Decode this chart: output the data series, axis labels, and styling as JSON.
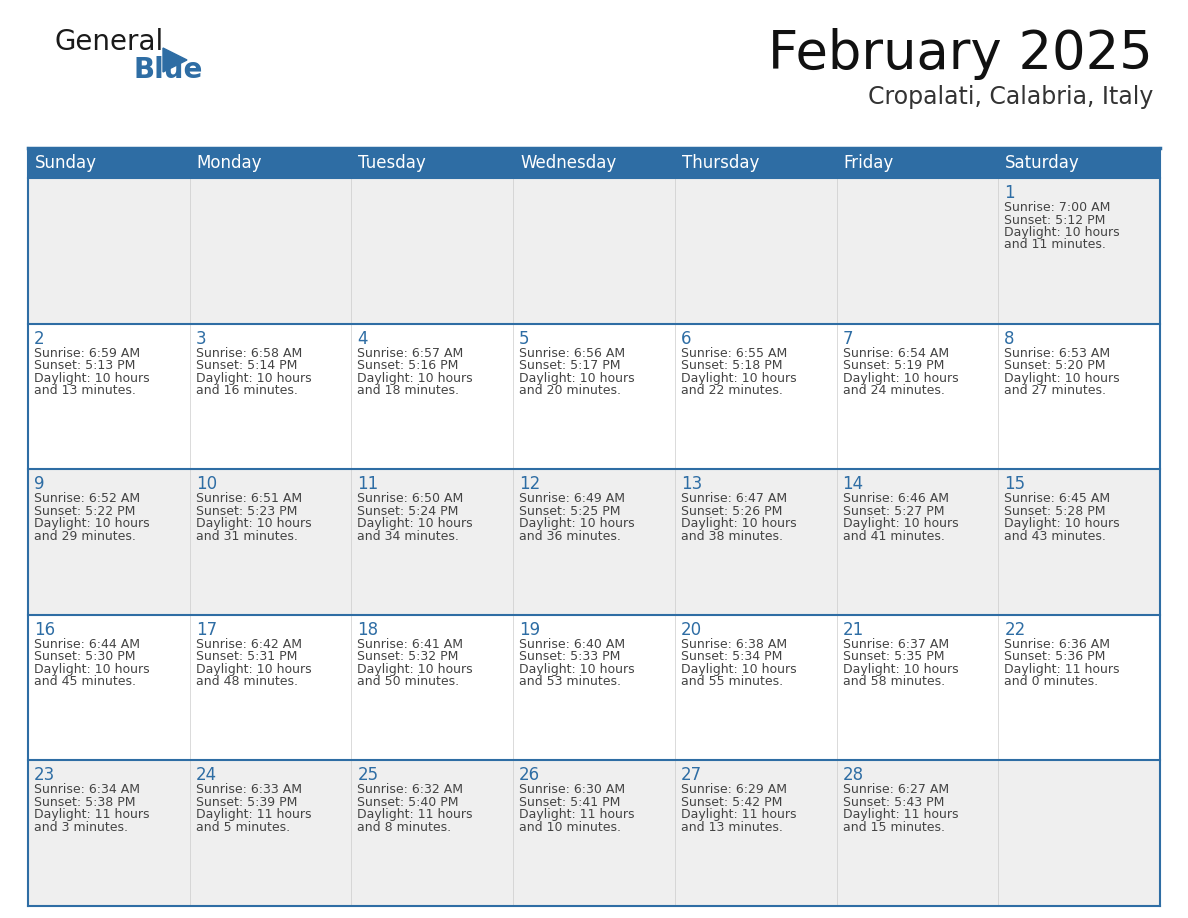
{
  "title": "February 2025",
  "subtitle": "Cropalati, Calabria, Italy",
  "header_bg": "#2E6DA4",
  "header_text_color": "#FFFFFF",
  "cell_bg_light": "#EFEFEF",
  "cell_bg_white": "#FFFFFF",
  "day_number_color": "#2E6DA4",
  "detail_text_color": "#444444",
  "border_color": "#2E6DA4",
  "grid_color": "#CCCCCC",
  "days_of_week": [
    "Sunday",
    "Monday",
    "Tuesday",
    "Wednesday",
    "Thursday",
    "Friday",
    "Saturday"
  ],
  "weeks": [
    [
      {
        "day": null,
        "sunrise": null,
        "sunset": null,
        "daylight_line1": null,
        "daylight_line2": null
      },
      {
        "day": null,
        "sunrise": null,
        "sunset": null,
        "daylight_line1": null,
        "daylight_line2": null
      },
      {
        "day": null,
        "sunrise": null,
        "sunset": null,
        "daylight_line1": null,
        "daylight_line2": null
      },
      {
        "day": null,
        "sunrise": null,
        "sunset": null,
        "daylight_line1": null,
        "daylight_line2": null
      },
      {
        "day": null,
        "sunrise": null,
        "sunset": null,
        "daylight_line1": null,
        "daylight_line2": null
      },
      {
        "day": null,
        "sunrise": null,
        "sunset": null,
        "daylight_line1": null,
        "daylight_line2": null
      },
      {
        "day": 1,
        "sunrise": "7:00 AM",
        "sunset": "5:12 PM",
        "daylight_line1": "Daylight: 10 hours",
        "daylight_line2": "and 11 minutes."
      }
    ],
    [
      {
        "day": 2,
        "sunrise": "6:59 AM",
        "sunset": "5:13 PM",
        "daylight_line1": "Daylight: 10 hours",
        "daylight_line2": "and 13 minutes."
      },
      {
        "day": 3,
        "sunrise": "6:58 AM",
        "sunset": "5:14 PM",
        "daylight_line1": "Daylight: 10 hours",
        "daylight_line2": "and 16 minutes."
      },
      {
        "day": 4,
        "sunrise": "6:57 AM",
        "sunset": "5:16 PM",
        "daylight_line1": "Daylight: 10 hours",
        "daylight_line2": "and 18 minutes."
      },
      {
        "day": 5,
        "sunrise": "6:56 AM",
        "sunset": "5:17 PM",
        "daylight_line1": "Daylight: 10 hours",
        "daylight_line2": "and 20 minutes."
      },
      {
        "day": 6,
        "sunrise": "6:55 AM",
        "sunset": "5:18 PM",
        "daylight_line1": "Daylight: 10 hours",
        "daylight_line2": "and 22 minutes."
      },
      {
        "day": 7,
        "sunrise": "6:54 AM",
        "sunset": "5:19 PM",
        "daylight_line1": "Daylight: 10 hours",
        "daylight_line2": "and 24 minutes."
      },
      {
        "day": 8,
        "sunrise": "6:53 AM",
        "sunset": "5:20 PM",
        "daylight_line1": "Daylight: 10 hours",
        "daylight_line2": "and 27 minutes."
      }
    ],
    [
      {
        "day": 9,
        "sunrise": "6:52 AM",
        "sunset": "5:22 PM",
        "daylight_line1": "Daylight: 10 hours",
        "daylight_line2": "and 29 minutes."
      },
      {
        "day": 10,
        "sunrise": "6:51 AM",
        "sunset": "5:23 PM",
        "daylight_line1": "Daylight: 10 hours",
        "daylight_line2": "and 31 minutes."
      },
      {
        "day": 11,
        "sunrise": "6:50 AM",
        "sunset": "5:24 PM",
        "daylight_line1": "Daylight: 10 hours",
        "daylight_line2": "and 34 minutes."
      },
      {
        "day": 12,
        "sunrise": "6:49 AM",
        "sunset": "5:25 PM",
        "daylight_line1": "Daylight: 10 hours",
        "daylight_line2": "and 36 minutes."
      },
      {
        "day": 13,
        "sunrise": "6:47 AM",
        "sunset": "5:26 PM",
        "daylight_line1": "Daylight: 10 hours",
        "daylight_line2": "and 38 minutes."
      },
      {
        "day": 14,
        "sunrise": "6:46 AM",
        "sunset": "5:27 PM",
        "daylight_line1": "Daylight: 10 hours",
        "daylight_line2": "and 41 minutes."
      },
      {
        "day": 15,
        "sunrise": "6:45 AM",
        "sunset": "5:28 PM",
        "daylight_line1": "Daylight: 10 hours",
        "daylight_line2": "and 43 minutes."
      }
    ],
    [
      {
        "day": 16,
        "sunrise": "6:44 AM",
        "sunset": "5:30 PM",
        "daylight_line1": "Daylight: 10 hours",
        "daylight_line2": "and 45 minutes."
      },
      {
        "day": 17,
        "sunrise": "6:42 AM",
        "sunset": "5:31 PM",
        "daylight_line1": "Daylight: 10 hours",
        "daylight_line2": "and 48 minutes."
      },
      {
        "day": 18,
        "sunrise": "6:41 AM",
        "sunset": "5:32 PM",
        "daylight_line1": "Daylight: 10 hours",
        "daylight_line2": "and 50 minutes."
      },
      {
        "day": 19,
        "sunrise": "6:40 AM",
        "sunset": "5:33 PM",
        "daylight_line1": "Daylight: 10 hours",
        "daylight_line2": "and 53 minutes."
      },
      {
        "day": 20,
        "sunrise": "6:38 AM",
        "sunset": "5:34 PM",
        "daylight_line1": "Daylight: 10 hours",
        "daylight_line2": "and 55 minutes."
      },
      {
        "day": 21,
        "sunrise": "6:37 AM",
        "sunset": "5:35 PM",
        "daylight_line1": "Daylight: 10 hours",
        "daylight_line2": "and 58 minutes."
      },
      {
        "day": 22,
        "sunrise": "6:36 AM",
        "sunset": "5:36 PM",
        "daylight_line1": "Daylight: 11 hours",
        "daylight_line2": "and 0 minutes."
      }
    ],
    [
      {
        "day": 23,
        "sunrise": "6:34 AM",
        "sunset": "5:38 PM",
        "daylight_line1": "Daylight: 11 hours",
        "daylight_line2": "and 3 minutes."
      },
      {
        "day": 24,
        "sunrise": "6:33 AM",
        "sunset": "5:39 PM",
        "daylight_line1": "Daylight: 11 hours",
        "daylight_line2": "and 5 minutes."
      },
      {
        "day": 25,
        "sunrise": "6:32 AM",
        "sunset": "5:40 PM",
        "daylight_line1": "Daylight: 11 hours",
        "daylight_line2": "and 8 minutes."
      },
      {
        "day": 26,
        "sunrise": "6:30 AM",
        "sunset": "5:41 PM",
        "daylight_line1": "Daylight: 11 hours",
        "daylight_line2": "and 10 minutes."
      },
      {
        "day": 27,
        "sunrise": "6:29 AM",
        "sunset": "5:42 PM",
        "daylight_line1": "Daylight: 11 hours",
        "daylight_line2": "and 13 minutes."
      },
      {
        "day": 28,
        "sunrise": "6:27 AM",
        "sunset": "5:43 PM",
        "daylight_line1": "Daylight: 11 hours",
        "daylight_line2": "and 15 minutes."
      },
      {
        "day": null,
        "sunrise": null,
        "sunset": null,
        "daylight_line1": null,
        "daylight_line2": null
      }
    ]
  ],
  "logo_general_color": "#1a1a1a",
  "logo_blue_color": "#2E6DA4",
  "title_fontsize": 38,
  "subtitle_fontsize": 17,
  "header_fontsize": 12,
  "day_num_fontsize": 12,
  "detail_fontsize": 9.0,
  "fig_width": 11.88,
  "fig_height": 9.18,
  "dpi": 100
}
